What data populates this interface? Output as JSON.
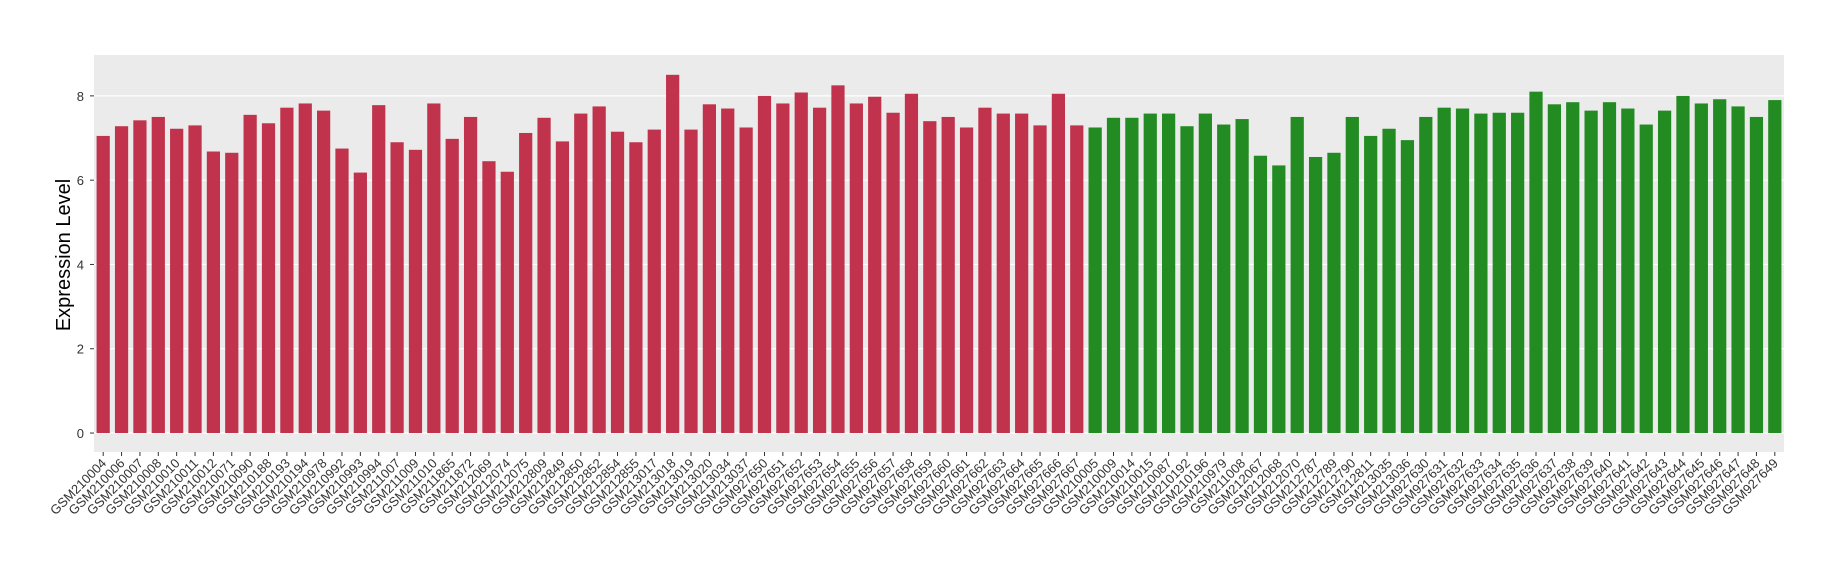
{
  "chart_data": {
    "type": "bar",
    "y_label": "Expression Level",
    "categories": [
      "GSM210004",
      "GSM210006",
      "GSM210007",
      "GSM210008",
      "GSM210010",
      "GSM210011",
      "GSM210012",
      "GSM210071",
      "GSM210090",
      "GSM210188",
      "GSM210193",
      "GSM210194",
      "GSM210978",
      "GSM210992",
      "GSM210993",
      "GSM210994",
      "GSM211007",
      "GSM211009",
      "GSM211010",
      "GSM211865",
      "GSM211872",
      "GSM212069",
      "GSM212074",
      "GSM212075",
      "GSM212809",
      "GSM212849",
      "GSM212850",
      "GSM212852",
      "GSM212854",
      "GSM212855",
      "GSM213017",
      "GSM213018",
      "GSM213019",
      "GSM213020",
      "GSM213034",
      "GSM213037",
      "GSM927650",
      "GSM927651",
      "GSM927652",
      "GSM927653",
      "GSM927654",
      "GSM927655",
      "GSM927656",
      "GSM927657",
      "GSM927658",
      "GSM927659",
      "GSM927660",
      "GSM927661",
      "GSM927662",
      "GSM927663",
      "GSM927664",
      "GSM927665",
      "GSM927666",
      "GSM927667",
      "GSM210005",
      "GSM210009",
      "GSM210014",
      "GSM210015",
      "GSM210087",
      "GSM210192",
      "GSM210196",
      "GSM210979",
      "GSM211008",
      "GSM212067",
      "GSM212068",
      "GSM212070",
      "GSM212787",
      "GSM212789",
      "GSM212790",
      "GSM212811",
      "GSM213035",
      "GSM213036",
      "GSM927630",
      "GSM927631",
      "GSM927632",
      "GSM927633",
      "GSM927634",
      "GSM927635",
      "GSM927636",
      "GSM927637",
      "GSM927638",
      "GSM927639",
      "GSM927640",
      "GSM927641",
      "GSM927642",
      "GSM927643",
      "GSM927644",
      "GSM927645",
      "GSM927646",
      "GSM927647",
      "GSM927648",
      "GSM927649"
    ],
    "values": [
      7.05,
      7.28,
      7.42,
      7.5,
      7.22,
      7.3,
      6.68,
      6.65,
      7.55,
      7.35,
      7.72,
      7.82,
      7.65,
      6.75,
      6.18,
      7.78,
      6.9,
      6.72,
      7.82,
      6.98,
      7.5,
      6.45,
      6.2,
      7.12,
      7.48,
      6.92,
      7.58,
      7.75,
      7.15,
      6.9,
      7.2,
      8.5,
      7.2,
      7.8,
      7.7,
      7.25,
      8.0,
      7.82,
      8.08,
      7.72,
      8.25,
      7.82,
      7.98,
      7.6,
      8.05,
      7.4,
      7.5,
      7.25,
      7.72,
      7.58,
      7.58,
      7.3,
      8.05,
      7.3,
      7.25,
      7.48,
      7.48,
      7.58,
      7.58,
      7.28,
      7.58,
      7.32,
      7.45,
      6.58,
      6.35,
      7.5,
      6.55,
      6.65,
      7.5,
      7.05,
      7.22,
      6.95,
      7.5,
      7.72,
      7.7,
      7.58,
      7.6,
      7.6,
      8.1,
      7.8,
      7.85,
      7.65,
      7.85,
      7.7,
      7.32,
      7.65,
      8.0,
      7.82,
      7.92,
      7.75,
      7.5,
      7.9
    ],
    "colors": [
      "#c1334c",
      "#c1334c",
      "#c1334c",
      "#c1334c",
      "#c1334c",
      "#c1334c",
      "#c1334c",
      "#c1334c",
      "#c1334c",
      "#c1334c",
      "#c1334c",
      "#c1334c",
      "#c1334c",
      "#c1334c",
      "#c1334c",
      "#c1334c",
      "#c1334c",
      "#c1334c",
      "#c1334c",
      "#c1334c",
      "#c1334c",
      "#c1334c",
      "#c1334c",
      "#c1334c",
      "#c1334c",
      "#c1334c",
      "#c1334c",
      "#c1334c",
      "#c1334c",
      "#c1334c",
      "#c1334c",
      "#c1334c",
      "#c1334c",
      "#c1334c",
      "#c1334c",
      "#c1334c",
      "#c1334c",
      "#c1334c",
      "#c1334c",
      "#c1334c",
      "#c1334c",
      "#c1334c",
      "#c1334c",
      "#c1334c",
      "#c1334c",
      "#c1334c",
      "#c1334c",
      "#c1334c",
      "#c1334c",
      "#c1334c",
      "#c1334c",
      "#c1334c",
      "#c1334c",
      "#c1334c",
      "#228b22",
      "#228b22",
      "#228b22",
      "#228b22",
      "#228b22",
      "#228b22",
      "#228b22",
      "#228b22",
      "#228b22",
      "#228b22",
      "#228b22",
      "#228b22",
      "#228b22",
      "#228b22",
      "#228b22",
      "#228b22",
      "#228b22",
      "#228b22",
      "#228b22",
      "#228b22",
      "#228b22",
      "#228b22",
      "#228b22",
      "#228b22",
      "#228b22",
      "#228b22",
      "#228b22",
      "#228b22",
      "#228b22",
      "#228b22",
      "#228b22",
      "#228b22",
      "#228b22",
      "#228b22",
      "#228b22",
      "#228b22",
      "#228b22",
      "#228b22"
    ],
    "ylim": [
      -0.45,
      8.97
    ],
    "yticks": [
      0,
      2,
      4,
      6,
      8
    ],
    "grid": true,
    "background": "#ebebeb"
  }
}
